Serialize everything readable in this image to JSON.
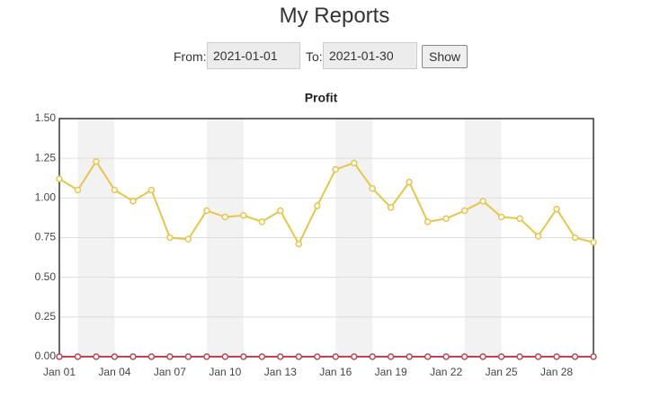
{
  "header": {
    "title": "My Reports"
  },
  "form": {
    "from_label": "From:",
    "from_value": "2021-01-01",
    "to_label": "To:",
    "to_value": "2021-01-30",
    "button": "Show"
  },
  "chart_data": {
    "type": "line",
    "title": "Profit",
    "categories": [
      "Jan 01",
      null,
      null,
      "Jan 04",
      null,
      null,
      "Jan 07",
      null,
      null,
      "Jan 10",
      null,
      null,
      "Jan 13",
      null,
      null,
      "Jan 16",
      null,
      null,
      "Jan 19",
      null,
      null,
      "Jan 22",
      null,
      null,
      "Jan 25",
      null,
      null,
      "Jan 28",
      null,
      null
    ],
    "series": [
      {
        "color": "#e8c54a",
        "values": [
          1.12,
          1.05,
          1.23,
          1.05,
          0.98,
          1.05,
          0.75,
          0.74,
          0.92,
          0.88,
          0.89,
          0.85,
          0.92,
          0.71,
          0.95,
          1.18,
          1.22,
          1.06,
          0.94,
          1.1,
          0.85,
          0.87,
          0.92,
          0.98,
          0.88,
          0.87,
          0.76,
          0.93,
          0.75,
          0.72
        ]
      },
      {
        "color": "#c0454f",
        "values": [
          0,
          0,
          0,
          0,
          0,
          0,
          0,
          0,
          0,
          0,
          0,
          0,
          0,
          0,
          0,
          0,
          0,
          0,
          0,
          0,
          0,
          0,
          0,
          0,
          0,
          0,
          0,
          0,
          0,
          0
        ]
      }
    ],
    "ylim": [
      0,
      1.5
    ],
    "yticks": [
      {
        "value": 0,
        "label": "0.00"
      },
      {
        "value": 0.25,
        "label": "0.25"
      },
      {
        "value": 0.5,
        "label": "0.50"
      },
      {
        "value": 0.75,
        "label": "0.75"
      },
      {
        "value": 1,
        "label": "1.00"
      },
      {
        "value": 1.25,
        "label": "1.25"
      },
      {
        "value": 1.5,
        "label": "1.50"
      }
    ],
    "grid": true
  }
}
